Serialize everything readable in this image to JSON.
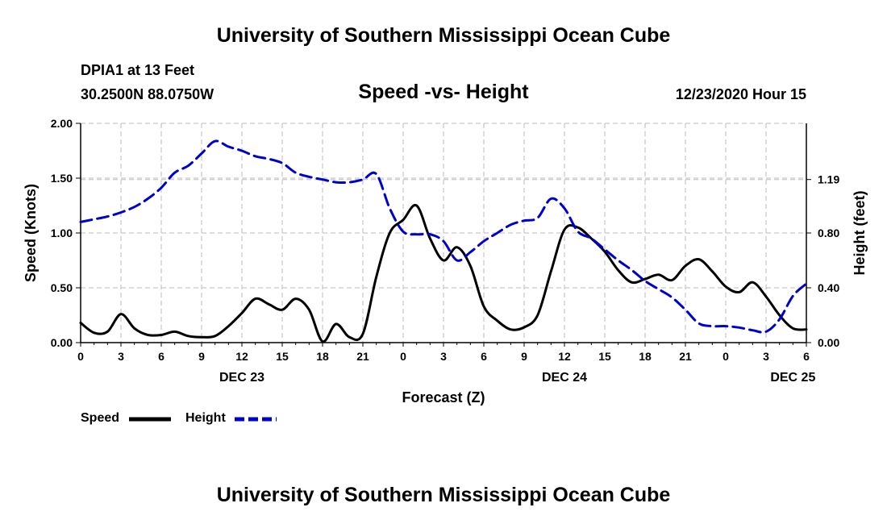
{
  "header": {
    "title_top": "University of Southern Mississippi Ocean Cube",
    "title_bottom": "University of Southern Mississippi Ocean Cube",
    "station": "DPIA1 at 13 Feet",
    "coordinates": "30.2500N 88.0750W",
    "plot_title": "Speed -vs- Height",
    "datetime": "12/23/2020 Hour 15"
  },
  "colors": {
    "speed": "#000000",
    "height": "#0000cc",
    "grid": "#bbbbbb"
  },
  "chart_data": {
    "type": "line",
    "title": "Speed -vs- Height",
    "xlabel": "Forecast (Z)",
    "ylabel": "Speed (Knots)",
    "y2label": "Height (feet)",
    "x_range": [
      0,
      54
    ],
    "ylim": [
      0,
      2.0
    ],
    "y2lim": [
      0,
      1.6
    ],
    "x_ticks": [
      0,
      3,
      6,
      9,
      12,
      15,
      18,
      21,
      24,
      27,
      30,
      33,
      36,
      39,
      42,
      45,
      48,
      51,
      54
    ],
    "x_tick_labels": [
      "0",
      "3",
      "6",
      "9",
      "12",
      "15",
      "18",
      "21",
      "0",
      "3",
      "6",
      "9",
      "12",
      "15",
      "18",
      "21",
      "0",
      "3",
      "6"
    ],
    "y_ticks": [
      0,
      0.5,
      1.0,
      1.5,
      2.0
    ],
    "y_tick_labels": [
      "0.00",
      "0.50",
      "1.00",
      "1.50",
      "2.00"
    ],
    "y2_ticks": [
      0,
      0.4,
      0.8,
      1.19
    ],
    "y2_tick_labels": [
      "0.00",
      "0.40",
      "0.80",
      "1.19"
    ],
    "date_labels": [
      {
        "x": 12,
        "label": "DEC 23"
      },
      {
        "x": 36,
        "label": "DEC 24"
      },
      {
        "x": 53,
        "label": "DEC 25"
      }
    ],
    "x": [
      0,
      1,
      2,
      3,
      4,
      5,
      6,
      7,
      8,
      9,
      10,
      11,
      12,
      13,
      14,
      15,
      16,
      17,
      18,
      19,
      20,
      21,
      22,
      23,
      24,
      25,
      26,
      27,
      28,
      29,
      30,
      31,
      32,
      33,
      34,
      35,
      36,
      37,
      38,
      39,
      40,
      41,
      42,
      43,
      44,
      45,
      46,
      47,
      48,
      49,
      50,
      51,
      52,
      53,
      54
    ],
    "series": [
      {
        "name": "Speed",
        "axis": "left",
        "style": "solid",
        "values": [
          0.18,
          0.09,
          0.1,
          0.26,
          0.13,
          0.07,
          0.07,
          0.1,
          0.06,
          0.05,
          0.06,
          0.15,
          0.27,
          0.4,
          0.35,
          0.3,
          0.4,
          0.3,
          0.01,
          0.17,
          0.05,
          0.08,
          0.6,
          1.0,
          1.12,
          1.25,
          0.95,
          0.75,
          0.87,
          0.7,
          0.33,
          0.2,
          0.12,
          0.14,
          0.25,
          0.65,
          1.03,
          1.05,
          0.95,
          0.83,
          0.66,
          0.55,
          0.58,
          0.62,
          0.57,
          0.7,
          0.76,
          0.65,
          0.51,
          0.46,
          0.55,
          0.42,
          0.25,
          0.13,
          0.12
        ]
      },
      {
        "name": "Height",
        "axis": "right",
        "style": "dashed",
        "values": [
          0.88,
          0.9,
          0.92,
          0.95,
          0.99,
          1.05,
          1.13,
          1.24,
          1.29,
          1.38,
          1.47,
          1.43,
          1.4,
          1.36,
          1.34,
          1.31,
          1.24,
          1.21,
          1.19,
          1.17,
          1.17,
          1.19,
          1.23,
          0.98,
          0.81,
          0.79,
          0.79,
          0.74,
          0.6,
          0.66,
          0.74,
          0.8,
          0.86,
          0.89,
          0.91,
          1.05,
          0.98,
          0.81,
          0.76,
          0.68,
          0.6,
          0.53,
          0.45,
          0.39,
          0.33,
          0.24,
          0.14,
          0.12,
          0.12,
          0.11,
          0.09,
          0.08,
          0.17,
          0.34,
          0.43
        ]
      }
    ],
    "legend": [
      "Speed",
      "Height"
    ],
    "legend_position": "bottom-left",
    "grid": true
  }
}
